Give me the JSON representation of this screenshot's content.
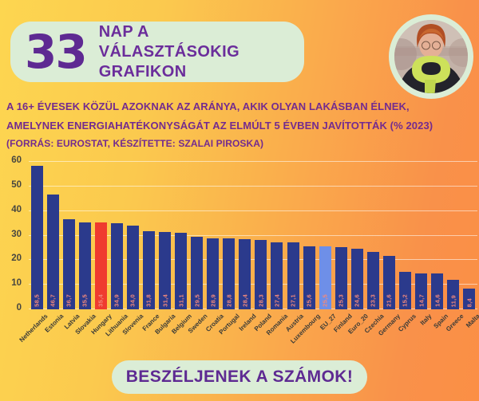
{
  "header": {
    "days_number": "33",
    "title_line1": "NAP A VÁLASZTÁSOKIG",
    "title_line2": "GRAFIKON"
  },
  "description": {
    "line1": "A 16+ ÉVESEK KÖZÜL AZOKNAK AZ ARÁNYA, AKIK OLYAN LAKÁSBAN ÉLNEK,",
    "line2": "AMELYNEK ENERGIAHATÉKONYSÁGÁT AZ ELMÚLT 5 ÉVBEN JAVÍTOTTÁK (% 2023)",
    "line3": "(FORRÁS: EUROSTAT, KÉSZÍTETTE: SZALAI PIROSKA)"
  },
  "chart_data": {
    "type": "bar",
    "title": "",
    "xlabel": "",
    "ylabel": "",
    "ylim": [
      0,
      60
    ],
    "yticks": [
      0,
      10,
      20,
      30,
      40,
      50,
      60
    ],
    "grid": true,
    "legend": "none",
    "categories": [
      "Netherlands",
      "Estonia",
      "Latvia",
      "Slovakia",
      "Hungary",
      "Lithuania",
      "Slovenia",
      "France",
      "Bulgaria",
      "Belgium",
      "Sweden",
      "Croatia",
      "Portugal",
      "Ireland",
      "Poland",
      "Romania",
      "Austria",
      "Luxembourg",
      "EU_27",
      "Finland",
      "Euro_20",
      "Czechia",
      "Germany",
      "Cyprus",
      "Italy",
      "Spain",
      "Greece",
      "Malta"
    ],
    "values": [
      58.5,
      46.7,
      36.7,
      35.5,
      35.4,
      34.9,
      34.0,
      31.8,
      31.4,
      31.1,
      29.5,
      28.9,
      28.8,
      28.4,
      28.3,
      27.4,
      27.1,
      25.6,
      25.5,
      25.3,
      24.6,
      23.3,
      21.6,
      15.2,
      14.7,
      14.6,
      11.9,
      8.4
    ],
    "value_labels": [
      "58,5",
      "46,7",
      "36,7",
      "35,5",
      "35,4",
      "34,9",
      "34,0",
      "31,8",
      "31,4",
      "31,1",
      "29,5",
      "28,9",
      "28,8",
      "28,4",
      "28,3",
      "27,4",
      "27,1",
      "25,6",
      "25,5",
      "25,3",
      "24,6",
      "23,3",
      "21,6",
      "15,2",
      "14,7",
      "14,6",
      "11,9",
      "8,4"
    ],
    "bar_color_default": "#2B3A8C",
    "bar_color_overrides": {
      "4": "#EF3B2F",
      "18": "#6E8FE8"
    },
    "highlighted_bars": {
      "Hungary": "#EF3B2F",
      "EU_27": "#6E8FE8"
    },
    "value_label_color": "#F2897B"
  },
  "footer": {
    "label": "BESZÉLJENEK A SZÁMOK!"
  },
  "colors": {
    "background_left": "#FDD650",
    "background_right": "#F9914A",
    "pill_green": "#DBEDD6",
    "accent_purple": "#5E2A92",
    "description_purple": "#732B8F",
    "bar_navy": "#2B3A8C",
    "bar_red": "#EF3B2F",
    "bar_blue": "#6E8FE8",
    "gridline": "rgba(255,255,255,0.55)"
  },
  "avatar": {
    "icon": "portrait-photo"
  }
}
